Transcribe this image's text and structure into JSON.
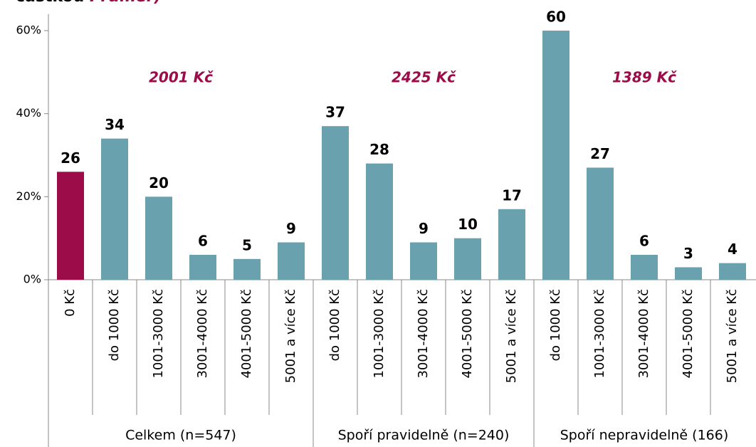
{
  "chart_data": {
    "type": "grouped-bar",
    "subtitle_parts": [
      "částkou",
      "Průměr)"
    ],
    "ylim": [
      0,
      64
    ],
    "yticks": [
      {
        "value": 0,
        "label": "0%"
      },
      {
        "value": 20,
        "label": "20%"
      },
      {
        "value": 40,
        "label": "40%"
      },
      {
        "value": 60,
        "label": "60%"
      }
    ],
    "groups": [
      {
        "name": "Celkem (n=547)",
        "average": "2001 Kč",
        "categories": [
          "0 Kč",
          "do 1000 Kč",
          "1001-3000 Kč",
          "3001-4000 Kč",
          "4001-5000 Kč",
          "5001 a více Kč"
        ],
        "values": [
          26,
          34,
          20,
          6,
          5,
          9
        ],
        "colors": [
          "#9c0c48",
          "#6aa1ae",
          "#6aa1ae",
          "#6aa1ae",
          "#6aa1ae",
          "#6aa1ae"
        ]
      },
      {
        "name": "Spoří pravidelně (n=240)",
        "average": "2425 Kč",
        "categories": [
          "do 1000 Kč",
          "1001-3000 Kč",
          "3001-4000 Kč",
          "4001-5000 Kč",
          "5001 a více Kč"
        ],
        "values": [
          37,
          28,
          9,
          10,
          17
        ],
        "colors": [
          "#6aa1ae",
          "#6aa1ae",
          "#6aa1ae",
          "#6aa1ae",
          "#6aa1ae"
        ]
      },
      {
        "name": "Spoří nepravidelně (166)",
        "average": "1389 Kč",
        "categories": [
          "do 1000 Kč",
          "1001-3000 Kč",
          "3001-4000 Kč",
          "4001-5000 Kč",
          "5001 a více Kč"
        ],
        "values": [
          60,
          27,
          6,
          3,
          4
        ],
        "colors": [
          "#6aa1ae",
          "#6aa1ae",
          "#6aa1ae",
          "#6aa1ae",
          "#6aa1ae"
        ]
      }
    ]
  }
}
